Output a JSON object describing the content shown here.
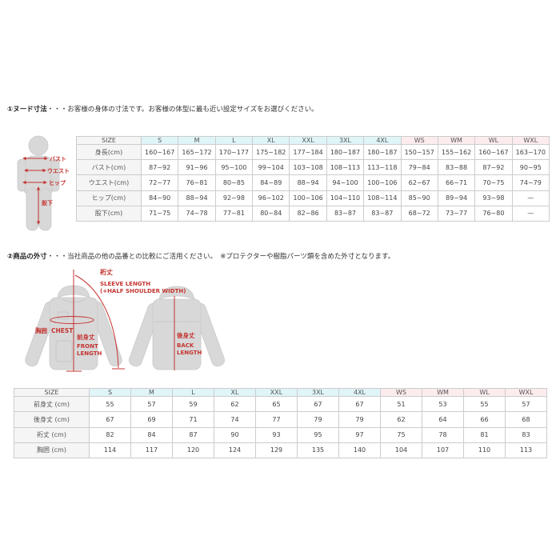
{
  "colors": {
    "mens_header_bg": "#e0f5f8",
    "womens_header_bg": "#fcecee",
    "label_cell_bg": "#f5f5f5",
    "border": "#cccccc",
    "accent_red": "#c43531",
    "figure_gray": "#d8d8d8"
  },
  "section1": {
    "heading_bold": "①ヌード寸法",
    "heading_rest": "・・・お客様の身体の寸法です。お客様の体型に最も近い設定サイズをお選びください。",
    "figure_labels": {
      "bust": "バスト",
      "waist": "ウエスト",
      "hip": "ヒップ",
      "inseam": "股下"
    },
    "table": {
      "size_header": "SIZE",
      "mens_sizes": [
        "S",
        "M",
        "L",
        "XL",
        "XXL",
        "3XL",
        "4XL"
      ],
      "womens_sizes": [
        "WS",
        "WM",
        "WL",
        "WXL"
      ],
      "rows": [
        {
          "label": "身長(cm)",
          "values": [
            "160~167",
            "165~172",
            "170~177",
            "175~182",
            "177~184",
            "180~187",
            "180~187",
            "150~157",
            "155~162",
            "160~167",
            "163~170"
          ]
        },
        {
          "label": "バスト(cm)",
          "values": [
            "87~92",
            "91~96",
            "95~100",
            "99~104",
            "103~108",
            "108~113",
            "113~118",
            "79~84",
            "83~88",
            "87~92",
            "90~95"
          ]
        },
        {
          "label": "ウエスト(cm)",
          "values": [
            "72~77",
            "76~81",
            "80~85",
            "84~89",
            "88~94",
            "94~100",
            "100~106",
            "62~67",
            "66~71",
            "70~75",
            "74~79"
          ]
        },
        {
          "label": "ヒップ(cm)",
          "values": [
            "84~90",
            "88~94",
            "92~98",
            "96~102",
            "100~106",
            "104~110",
            "108~114",
            "85~90",
            "89~94",
            "93~98",
            "—"
          ]
        },
        {
          "label": "股下(cm)",
          "values": [
            "71~75",
            "74~78",
            "77~81",
            "80~84",
            "82~86",
            "83~87",
            "83~87",
            "68~72",
            "73~77",
            "76~80",
            "—"
          ]
        }
      ]
    }
  },
  "section2": {
    "heading_bold": "②商品の外寸",
    "heading_rest": "・・・当社商品の他の品番との比較にご活用ください。　※プロテクターや樹脂パーツ類を含めた外寸となります。",
    "figure_labels": {
      "sleeve_jp": "裄丈",
      "sleeve_en1": "SLEEVE LENGTH",
      "sleeve_en2": "(+HALF SHOULDER WIDTH)",
      "chest_jp": "胸囲",
      "chest_en": "CHEST",
      "front_jp": "前身丈",
      "front_en1": "FRONT",
      "front_en2": "LENGTH",
      "back_jp": "後身丈",
      "back_en1": "BACK",
      "back_en2": "LENGTH"
    },
    "table": {
      "size_header": "SIZE",
      "mens_sizes": [
        "S",
        "M",
        "L",
        "XL",
        "XXL",
        "3XL",
        "4XL"
      ],
      "womens_sizes": [
        "WS",
        "WM",
        "WL",
        "WXL"
      ],
      "rows": [
        {
          "label": "前身丈 (cm)",
          "values": [
            "55",
            "57",
            "59",
            "62",
            "65",
            "67",
            "67",
            "51",
            "53",
            "55",
            "57"
          ]
        },
        {
          "label": "後身丈 (cm)",
          "values": [
            "67",
            "69",
            "71",
            "74",
            "77",
            "79",
            "79",
            "62",
            "64",
            "66",
            "68"
          ]
        },
        {
          "label": "裄丈 (cm)",
          "values": [
            "82",
            "84",
            "87",
            "90",
            "93",
            "95",
            "97",
            "75",
            "78",
            "81",
            "83"
          ]
        },
        {
          "label": "胸囲 (cm)",
          "values": [
            "114",
            "117",
            "120",
            "124",
            "129",
            "135",
            "140",
            "104",
            "107",
            "110",
            "113"
          ]
        }
      ]
    }
  }
}
